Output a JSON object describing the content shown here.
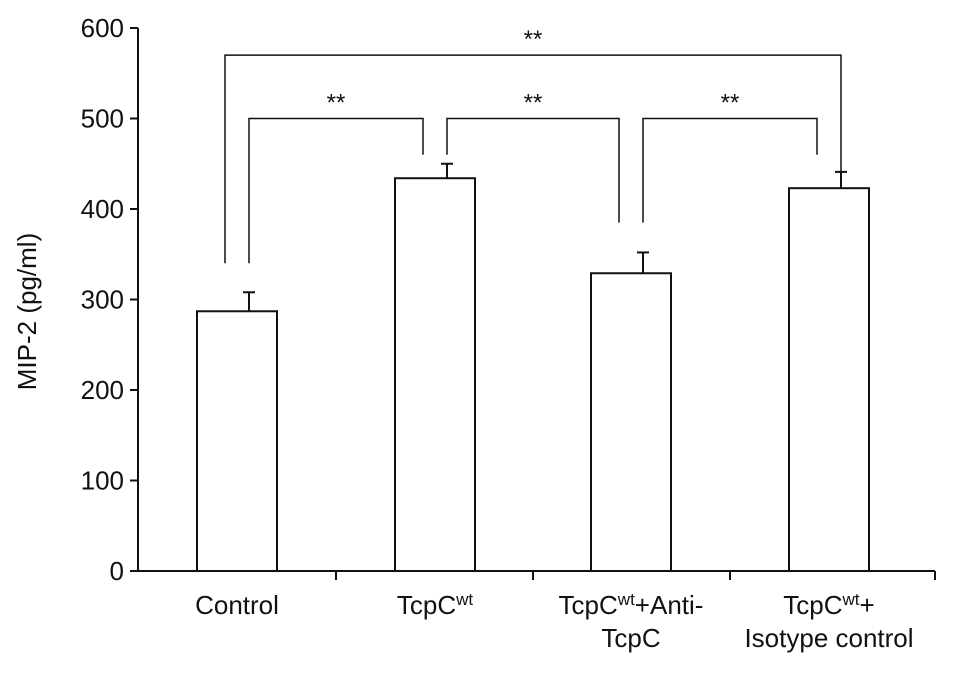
{
  "chart_data": {
    "type": "bar",
    "title": "",
    "xlabel": "",
    "ylabel": "MIP-2 (pg/ml)",
    "ylim": [
      0,
      600
    ],
    "yticks": [
      0,
      100,
      200,
      300,
      400,
      500,
      600
    ],
    "grid": false,
    "categories": [
      {
        "lines": [
          {
            "text": "Control",
            "sup": ""
          }
        ]
      },
      {
        "lines": [
          {
            "text": "TcpC",
            "sup": "wt"
          }
        ]
      },
      {
        "lines": [
          {
            "text": "TcpC",
            "sup": "wt",
            "after": "+Anti-"
          },
          {
            "text": "TcpC",
            "sup": ""
          }
        ]
      },
      {
        "lines": [
          {
            "text": "TcpC",
            "sup": "wt",
            "after": "+"
          },
          {
            "text": "Isotype control",
            "sup": ""
          }
        ]
      }
    ],
    "values": [
      287,
      434,
      329,
      423
    ],
    "errors": [
      21,
      16,
      23,
      18
    ],
    "colors": {
      "bar_fill": "#ffffff",
      "stroke": "#111111"
    },
    "significance": [
      {
        "from": 0,
        "to": 3,
        "label": "**",
        "y": 570,
        "drop_from": 340,
        "drop_to": 385
      },
      {
        "from": 0,
        "to": 1,
        "label": "**",
        "y": 500,
        "drop_from": 340,
        "drop_to": 460
      },
      {
        "from": 1,
        "to": 2,
        "label": "**",
        "y": 500,
        "drop_from": 460,
        "drop_to": 385
      },
      {
        "from": 2,
        "to": 3,
        "label": "**",
        "y": 500,
        "drop_from": 385,
        "drop_to": 460
      }
    ]
  }
}
